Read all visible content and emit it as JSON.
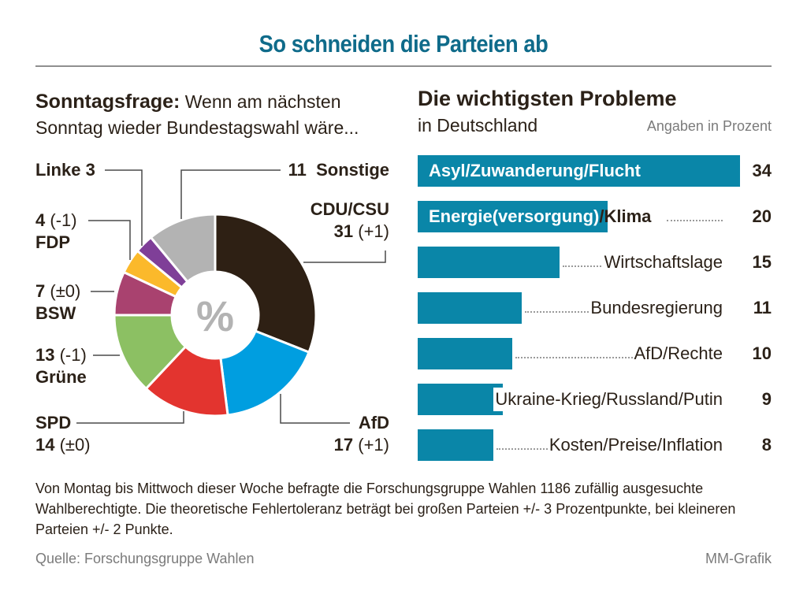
{
  "header": {
    "title": "So schneiden die Parteien ab"
  },
  "pie_section": {
    "title_bold": "Sonntagsfrage:",
    "title_rest": " Wenn am nächsten",
    "subtitle": "Sonntag wieder Bundestagswahl wäre...",
    "center_symbol": "%"
  },
  "bar_section": {
    "title": "Die wichtigsten Probleme",
    "subtitle": "in Deutschland",
    "unit_note": "Angaben in Prozent"
  },
  "chart_data": [
    {
      "type": "pie",
      "variant": "donut",
      "title": "Sonntagsfrage: Wenn am nächsten Sonntag wieder Bundestagswahl wäre...",
      "center_label": "%",
      "start": "top, clockwise",
      "slices": [
        {
          "name": "CDU/CSU",
          "value": 31,
          "change": "(+1)",
          "color": "#2e2014"
        },
        {
          "name": "AfD",
          "value": 17,
          "change": "(+1)",
          "color": "#009ee0"
        },
        {
          "name": "SPD",
          "value": 14,
          "change": "(±0)",
          "color": "#e3342f"
        },
        {
          "name": "Grüne",
          "value": 13,
          "change": "(-1)",
          "color": "#8cc063"
        },
        {
          "name": "BSW",
          "value": 7,
          "change": "(±0)",
          "color": "#a9426f"
        },
        {
          "name": "FDP",
          "value": 4,
          "change": "(-1)",
          "color": "#fbb92b"
        },
        {
          "name": "Linke",
          "value": 3,
          "change": "",
          "color": "#7f3f98"
        },
        {
          "name": "Sonstige",
          "value": 11,
          "change": "",
          "color": "#b3b3b3"
        }
      ]
    },
    {
      "type": "bar",
      "orientation": "horizontal",
      "title": "Die wichtigsten Probleme in Deutschland",
      "unit": "Angaben in Prozent",
      "xlim": [
        0,
        34
      ],
      "bar_color": "#0a86a8",
      "categories": [
        "Asyl/Zuwanderung/Flucht",
        "Energie(versorgung)/Klima",
        "Wirtschaftslage",
        "Bundesregierung",
        "AfD/Rechte",
        "Ukraine-Krieg/Russland/Putin",
        "Kosten/Preise/Inflation"
      ],
      "values": [
        34,
        20,
        15,
        11,
        10,
        9,
        8
      ]
    }
  ],
  "labels": {
    "linke": {
      "text": "Linke 3"
    },
    "sonstige": {
      "num": "11",
      "name": "Sonstige"
    },
    "cdu": {
      "name": "CDU/CSU",
      "num": "31",
      "change": "(+1)"
    },
    "fdp": {
      "num": "4",
      "change": "(-1)",
      "name": "FDP"
    },
    "bsw": {
      "num": "7",
      "change": "(±0)",
      "name": "BSW"
    },
    "gruene": {
      "num": "13",
      "change": "(-1)",
      "name": "Grüne"
    },
    "spd": {
      "name": "SPD",
      "num": "14",
      "change": "(±0)"
    },
    "afd": {
      "name": "AfD",
      "num": "17",
      "change": "(+1)"
    }
  },
  "energie_split": {
    "inside": "Energie(versorgung)",
    "outside": "/Klima"
  },
  "footer": {
    "note": "Von Montag bis Mittwoch dieser Woche befragte die Forschungsgruppe Wahlen 1186 zufällig ausgesuchte Wahlberechtigte. Die theoretische Fehlertoleranz beträgt bei großen Parteien +/- 3 Prozentpunkte, bei kleineren Parteien +/- 2 Punkte.",
    "source": "Quelle: Forschungsgruppe Wahlen",
    "credit": "MM-Grafik"
  }
}
